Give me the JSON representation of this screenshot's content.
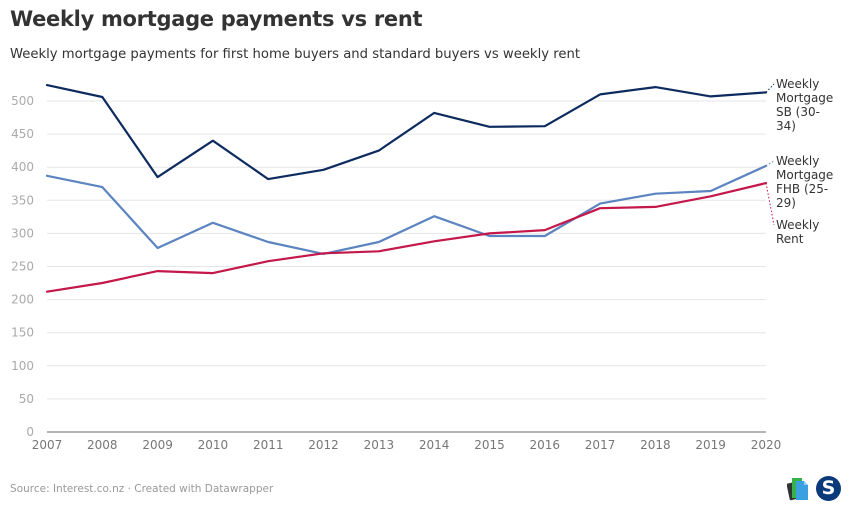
{
  "header": {
    "title": "Weekly mortgage payments vs rent",
    "subtitle": "Weekly mortgage payments for first home buyers and standard buyers vs weekly rent"
  },
  "footer": {
    "source": "Source: Interest.co.nz · Created with Datawrapper",
    "logos": [
      "newsroom-docs-icon",
      "stuff-s-logo"
    ]
  },
  "chart_data": {
    "type": "line",
    "title": "Weekly mortgage payments vs rent",
    "subtitle": "Weekly mortgage payments for first home buyers and standard buyers vs weekly rent",
    "xlabel": "",
    "ylabel": "",
    "x": [
      2007,
      2008,
      2009,
      2010,
      2011,
      2012,
      2013,
      2014,
      2015,
      2016,
      2017,
      2018,
      2019,
      2020
    ],
    "xticks": [
      "2007",
      "2008",
      "2009",
      "2010",
      "2011",
      "2012",
      "2013",
      "2014",
      "2015",
      "2016",
      "2017",
      "2018",
      "2019",
      "2020"
    ],
    "yticks": [
      0,
      50,
      100,
      150,
      200,
      250,
      300,
      350,
      400,
      450,
      500
    ],
    "ylim": [
      0,
      525
    ],
    "grid": true,
    "legend": "direct-labels-right",
    "series": [
      {
        "name": "Weekly Mortgage SB (30-34)",
        "label_lines": [
          "Weekly",
          "Mortgage",
          "SB (30-",
          "34)"
        ],
        "color": "#0d2b5e",
        "values": [
          524,
          506,
          385,
          440,
          382,
          396,
          425,
          482,
          461,
          462,
          510,
          521,
          507,
          513
        ]
      },
      {
        "name": "Weekly Mortgage FHB (25-29)",
        "label_lines": [
          "Weekly",
          "Mortgage",
          "FHB (25-",
          "29)"
        ],
        "color": "#5b84c0",
        "values": [
          387,
          370,
          278,
          316,
          287,
          269,
          287,
          326,
          296,
          296,
          345,
          360,
          364,
          402
        ]
      },
      {
        "name": "Weekly Rent",
        "label_lines": [
          "Weekly",
          "Rent"
        ],
        "color": "#c4174a",
        "values": [
          212,
          225,
          243,
          240,
          258,
          270,
          273,
          288,
          300,
          305,
          338,
          340,
          356,
          376
        ]
      }
    ]
  }
}
